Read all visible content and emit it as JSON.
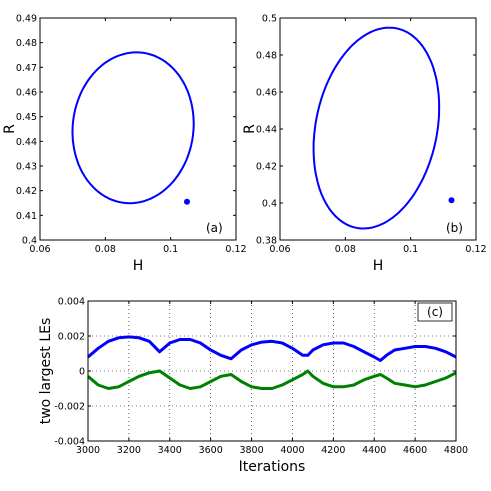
{
  "chart_data": [
    {
      "type": "line",
      "panel_label": "(a)",
      "xlabel": "H",
      "ylabel": "R",
      "xlim": [
        0.06,
        0.12
      ],
      "ylim": [
        0.4,
        0.49
      ],
      "xticks": [
        "0.06",
        "0.08",
        "0.1",
        "0.12"
      ],
      "yticks": [
        "0.4",
        "0.41",
        "0.42",
        "0.43",
        "0.44",
        "0.45",
        "0.46",
        "0.47",
        "0.48",
        "0.49"
      ],
      "grid": false,
      "color": "#0000ff",
      "curve": "closed ellipse (limit cycle)",
      "ellipse": {
        "center": [
          0.0885,
          0.4455
        ],
        "semi_axes": [
          0.0152,
          0.0445
        ]
      },
      "marker": {
        "x": 0.105,
        "y": 0.4155
      }
    },
    {
      "type": "line",
      "panel_label": "(b)",
      "xlabel": "H",
      "ylabel": "R",
      "xlim": [
        0.06,
        0.12
      ],
      "ylim": [
        0.38,
        0.5
      ],
      "xticks": [
        "0.06",
        "0.08",
        "0.1",
        "0.12"
      ],
      "yticks": [
        "0.38",
        "0.4",
        "0.42",
        "0.44",
        "0.46",
        "0.48",
        "0.5"
      ],
      "grid": false,
      "color": "#0000ff",
      "curve": "closed ellipse (limit cycle)",
      "ellipse": {
        "center": [
          0.0895,
          0.4405
        ],
        "semi_axes": [
          0.0205,
          0.0595
        ]
      },
      "marker": {
        "x": 0.1125,
        "y": 0.4015
      }
    },
    {
      "type": "line",
      "panel_label": "(c)",
      "xlabel": "Iterations",
      "ylabel": "two largest LEs",
      "xlim": [
        3000,
        4800
      ],
      "ylim": [
        -0.004,
        0.004
      ],
      "xticks": [
        "3000",
        "3200",
        "3400",
        "3600",
        "3800",
        "4000",
        "4200",
        "4400",
        "4600",
        "4800"
      ],
      "yticks": [
        "-0.004",
        "-0.002",
        "0",
        "0.002",
        "0.004"
      ],
      "grid": true,
      "series": [
        {
          "color": "#0000ff",
          "x": [
            3000,
            3050,
            3100,
            3150,
            3200,
            3250,
            3300,
            3350,
            3400,
            3450,
            3500,
            3550,
            3600,
            3650,
            3700,
            3750,
            3800,
            3850,
            3900,
            3950,
            4000,
            4050,
            4075,
            4100,
            4150,
            4200,
            4250,
            4300,
            4350,
            4400,
            4430,
            4460,
            4500,
            4550,
            4600,
            4650,
            4700,
            4750,
            4800
          ],
          "y": [
            0.0008,
            0.0013,
            0.0017,
            0.0019,
            0.00195,
            0.0019,
            0.0017,
            0.0011,
            0.0016,
            0.0018,
            0.0018,
            0.0016,
            0.0012,
            0.0009,
            0.0007,
            0.0012,
            0.0015,
            0.00165,
            0.0017,
            0.0016,
            0.0013,
            0.0009,
            0.0009,
            0.0012,
            0.0015,
            0.0016,
            0.0016,
            0.0014,
            0.0011,
            0.0008,
            0.0006,
            0.0009,
            0.0012,
            0.0013,
            0.0014,
            0.0014,
            0.0013,
            0.0011,
            0.0008
          ]
        },
        {
          "color": "#008000",
          "x": [
            3000,
            3050,
            3100,
            3150,
            3200,
            3250,
            3300,
            3350,
            3400,
            3450,
            3500,
            3550,
            3600,
            3650,
            3700,
            3750,
            3800,
            3850,
            3900,
            3950,
            4000,
            4050,
            4075,
            4100,
            4150,
            4200,
            4250,
            4300,
            4350,
            4400,
            4430,
            4460,
            4500,
            4550,
            4600,
            4650,
            4700,
            4750,
            4800
          ],
          "y": [
            -0.0003,
            -0.0008,
            -0.001,
            -0.0009,
            -0.0006,
            -0.0003,
            -0.0001,
            0.0,
            -0.0004,
            -0.0008,
            -0.001,
            -0.0009,
            -0.0006,
            -0.0003,
            -0.0002,
            -0.0006,
            -0.0009,
            -0.001,
            -0.001,
            -0.0008,
            -0.0005,
            -0.0002,
            0.0,
            -0.0003,
            -0.0007,
            -0.0009,
            -0.0009,
            -0.0008,
            -0.0005,
            -0.0003,
            -0.0002,
            -0.0004,
            -0.0007,
            -0.0008,
            -0.0009,
            -0.0008,
            -0.0006,
            -0.0004,
            -0.0001
          ]
        }
      ]
    }
  ]
}
